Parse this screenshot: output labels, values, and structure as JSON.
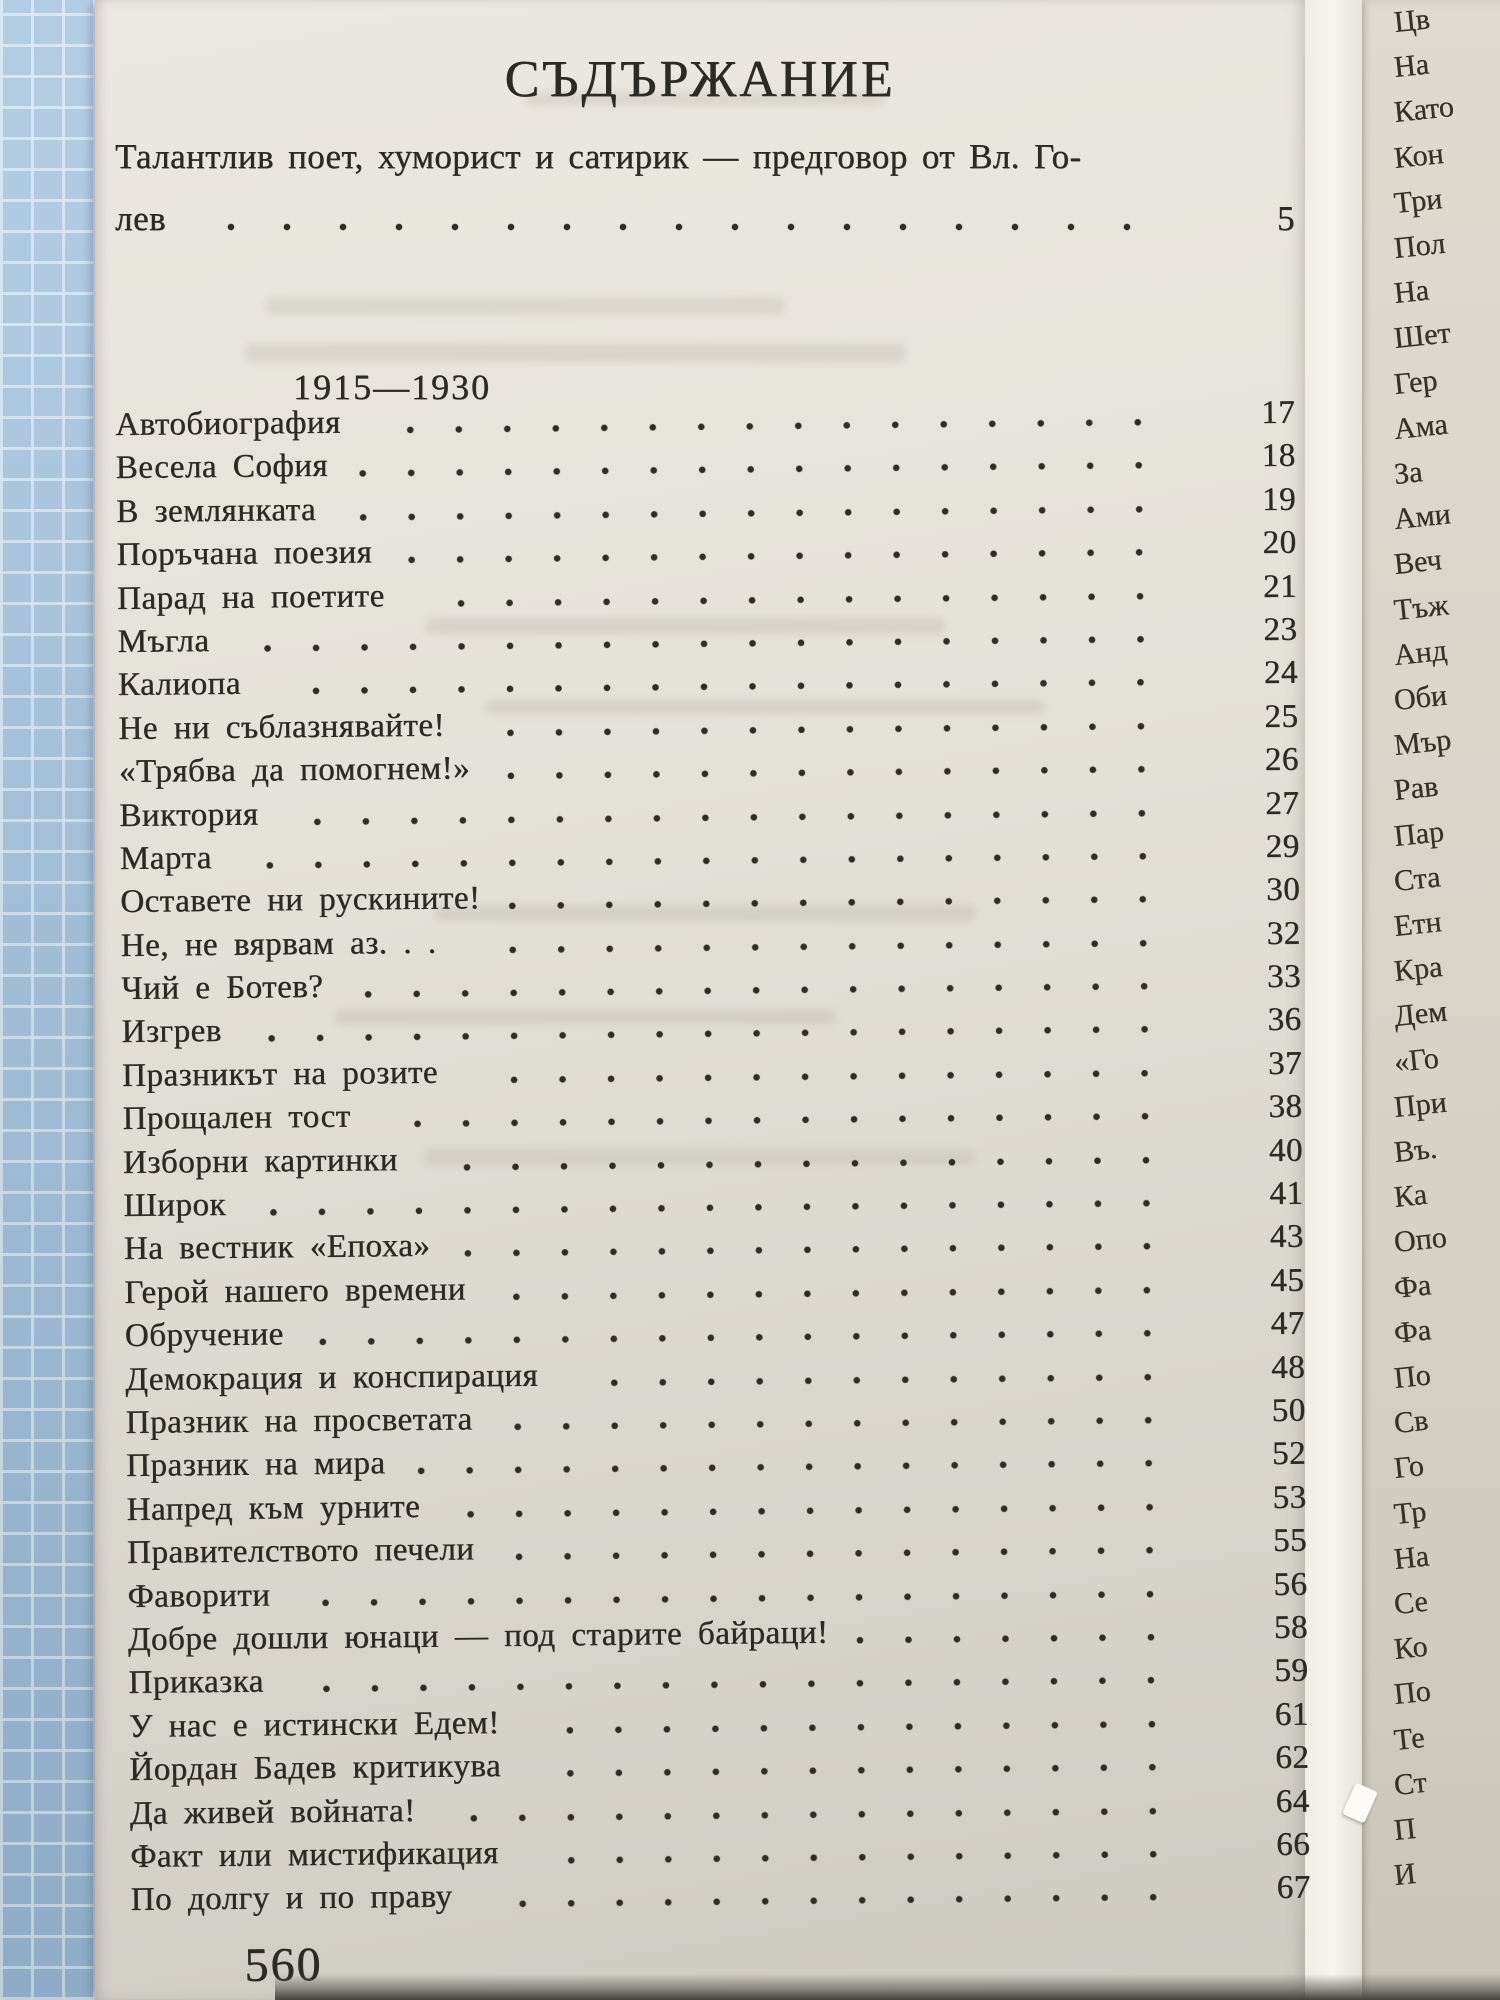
{
  "document": {
    "title": "СЪДЪРЖАНИЕ",
    "preface": {
      "line1": "Талантлив поет, хуморист и сатирик — предговор от Вл. Го-",
      "line2_start": "лев",
      "page_number": "5"
    },
    "section_heading": "1915—1930",
    "toc_entries": [
      {
        "title": "Автобиография",
        "page": "17"
      },
      {
        "title": "Весела София",
        "page": "18"
      },
      {
        "title": "В землянката",
        "page": "19"
      },
      {
        "title": "Поръчана поезия",
        "page": "20"
      },
      {
        "title": "Парад на поетите",
        "page": "21"
      },
      {
        "title": "Мъгла",
        "page": "23"
      },
      {
        "title": "Калиопа",
        "page": "24"
      },
      {
        "title": "Не ни съблазнявайте!",
        "page": "25"
      },
      {
        "title": "«Трябва да помогнем!»",
        "page": "26"
      },
      {
        "title": "Виктория",
        "page": "27"
      },
      {
        "title": "Марта",
        "page": "29"
      },
      {
        "title": "Оставете ни рускините!",
        "page": "30"
      },
      {
        "title": "Не, не вярвам аз. . .",
        "page": "32"
      },
      {
        "title": "Чий е Ботев?",
        "page": "33"
      },
      {
        "title": "Изгрев",
        "page": "36"
      },
      {
        "title": "Празникът на розите",
        "page": "37"
      },
      {
        "title": "Прощален тост",
        "page": "38"
      },
      {
        "title": "Изборни картинки",
        "page": "40"
      },
      {
        "title": "Широк",
        "page": "41"
      },
      {
        "title": "На вестник «Епоха»",
        "page": "43"
      },
      {
        "title": "Герой нашего времени",
        "page": "45"
      },
      {
        "title": "Обручение",
        "page": "47"
      },
      {
        "title": "Демокрация и конспирация",
        "page": "48"
      },
      {
        "title": "Празник на просветата",
        "page": "50"
      },
      {
        "title": "Празник на мира",
        "page": "52"
      },
      {
        "title": "Напред към урните",
        "page": "53"
      },
      {
        "title": "Правителството печели",
        "page": "55"
      },
      {
        "title": "Фаворити",
        "page": "56"
      },
      {
        "title": "Добре дошли юнаци — под старите байраци!",
        "page": "58"
      },
      {
        "title": "Приказка",
        "page": "59"
      },
      {
        "title": "У нас е истински Едем!",
        "page": "61"
      },
      {
        "title": "Йордан Бадев критикува",
        "page": "62"
      },
      {
        "title": "Да живей войната!",
        "page": "64"
      },
      {
        "title": "Факт или мистификация",
        "page": "66"
      },
      {
        "title": "По долгу и по праву",
        "page": "67"
      }
    ],
    "folio": "560"
  },
  "adjacent_page": {
    "visible_fragments": [
      "Цв",
      "На",
      "Като",
      "Кон",
      "Три",
      "Пол",
      "На",
      "Шет",
      "Гер",
      "Ама",
      "За",
      "Ами",
      "Веч",
      "Тъж",
      "Анд",
      "Оби",
      "Мър",
      "Рав",
      "Пар",
      "Ста",
      "Етн",
      "Кра",
      "Дем",
      "«Го",
      "При",
      "Въ.",
      "Ка",
      "Опо",
      "Фа",
      "Фа",
      "По",
      "Св",
      "Го",
      "Тр",
      "На",
      "Се",
      "Ко",
      "По",
      "Те",
      "Ст",
      "П",
      "И"
    ]
  },
  "colors": {
    "paper": "#e4e1d9",
    "checker_blue": "#9fbcd8",
    "ink": "#2c2a25",
    "adjacent_paper": "#d9d5ca",
    "torn_edge": "#f4f2ec"
  }
}
